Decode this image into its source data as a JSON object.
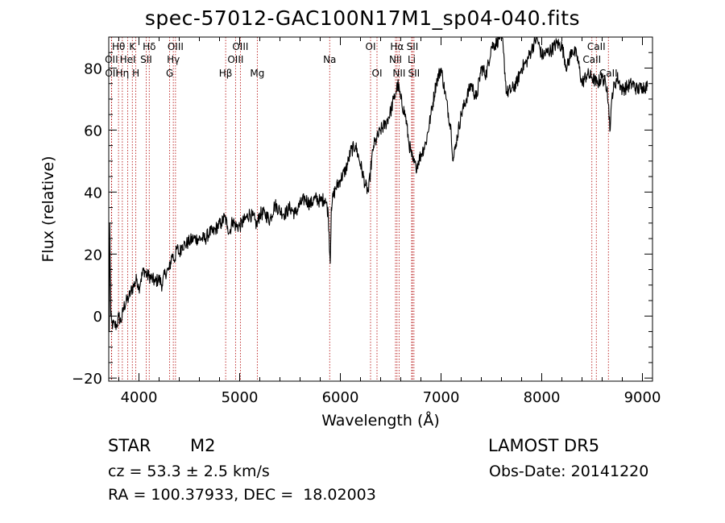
{
  "chart_data": {
    "type": "line",
    "title": "spec-57012-GAC100N17M1_sp04-040.fits",
    "xlabel": "Wavelength (Å)",
    "ylabel": "Flux (relative)",
    "xlim": [
      3700,
      9100
    ],
    "ylim": [
      -21,
      90
    ],
    "xticks": [
      4000,
      5000,
      6000,
      7000,
      8000,
      9000
    ],
    "yticks": [
      -20,
      0,
      20,
      40,
      60,
      80
    ],
    "grid": false,
    "series": [
      {
        "x": [
          3705,
          3710,
          3720,
          3730,
          3740,
          3760,
          3780,
          3800,
          3820,
          3850,
          3880,
          3900,
          3920,
          3950,
          3980,
          4000,
          4020,
          4050,
          4080,
          4100,
          4130,
          4160,
          4200,
          4230,
          4260,
          4300,
          4330,
          4350,
          4380,
          4400,
          4430,
          4460,
          4500,
          4540,
          4580,
          4620,
          4660,
          4700,
          4740,
          4780,
          4820,
          4850,
          4880,
          4900,
          4930,
          4960,
          5000,
          5050,
          5100,
          5150,
          5170,
          5200,
          5250,
          5300,
          5350,
          5400,
          5450,
          5500,
          5550,
          5600,
          5650,
          5700,
          5750,
          5800,
          5850,
          5880,
          5900,
          5910,
          5920,
          5950,
          6000,
          6050,
          6080,
          6100,
          6150,
          6200,
          6250,
          6280,
          6300,
          6330,
          6360,
          6400,
          6450,
          6500,
          6530,
          6550,
          6570,
          6600,
          6650,
          6680,
          6700,
          6720,
          6750,
          6800,
          6850,
          6900,
          6950,
          7000,
          7050,
          7100,
          7120,
          7150,
          7200,
          7250,
          7300,
          7350,
          7400,
          7450,
          7500,
          7550,
          7580,
          7600,
          7620,
          7650,
          7700,
          7750,
          7800,
          7850,
          7900,
          7950,
          8000,
          8050,
          8100,
          8150,
          8200,
          8250,
          8300,
          8350,
          8400,
          8450,
          8500,
          8550,
          8600,
          8650,
          8680,
          8700,
          8750,
          8800,
          8850,
          8900,
          8950,
          9000,
          9050
        ],
        "y": [
          -5,
          30,
          0,
          -2,
          -3,
          -3,
          -3,
          0,
          -2,
          3,
          5,
          6,
          8,
          10,
          12,
          9,
          12,
          15,
          13,
          13,
          12,
          11,
          12,
          10,
          14,
          15,
          20,
          18,
          22,
          20,
          23,
          23,
          24,
          25,
          25,
          25,
          25,
          27,
          27,
          29,
          30,
          32,
          29,
          27,
          31,
          29,
          29,
          31,
          33,
          31,
          29,
          33,
          33,
          31,
          36,
          34,
          33,
          35,
          33,
          36,
          38,
          36,
          38,
          37,
          38,
          33,
          17,
          35,
          37,
          41,
          44,
          47,
          50,
          53,
          55,
          49,
          42,
          40,
          47,
          55,
          57,
          60,
          62,
          66,
          70,
          72,
          75,
          70,
          64,
          56,
          53,
          50,
          48,
          52,
          56,
          65,
          75,
          80,
          70,
          60,
          50,
          56,
          65,
          70,
          75,
          70,
          80,
          78,
          87,
          88,
          90,
          92,
          85,
          72,
          73,
          75,
          80,
          82,
          86,
          90,
          84,
          85,
          86,
          88,
          87,
          80,
          86,
          84,
          75,
          78,
          77,
          75,
          77,
          74,
          60,
          72,
          77,
          73,
          74,
          75,
          73,
          74,
          74
        ]
      }
    ],
    "line_markers": [
      {
        "label": "Hθ",
        "wl": 3797,
        "row": 1
      },
      {
        "label": "OII",
        "wl": 3727,
        "row": 2
      },
      {
        "label": "OII",
        "wl": 3729,
        "row": 3
      },
      {
        "label": "Hη",
        "wl": 3835,
        "row": 3
      },
      {
        "label": "HeI",
        "wl": 3889,
        "row": 2
      },
      {
        "label": "K",
        "wl": 3934,
        "row": 1
      },
      {
        "label": "H",
        "wl": 3969,
        "row": 3
      },
      {
        "label": "SII",
        "wl": 4072,
        "row": 2
      },
      {
        "label": "Hδ",
        "wl": 4102,
        "row": 1
      },
      {
        "label": "G",
        "wl": 4305,
        "row": 3
      },
      {
        "label": "Hγ",
        "wl": 4341,
        "row": 2
      },
      {
        "label": "OIII",
        "wl": 4363,
        "row": 1
      },
      {
        "label": "Hβ",
        "wl": 4861,
        "row": 3
      },
      {
        "label": "OIII",
        "wl": 4959,
        "row": 2
      },
      {
        "label": "OIII",
        "wl": 5007,
        "row": 1
      },
      {
        "label": "Mg",
        "wl": 5175,
        "row": 3
      },
      {
        "label": "Na",
        "wl": 5894,
        "row": 2
      },
      {
        "label": "OI",
        "wl": 6300,
        "row": 1
      },
      {
        "label": "OI",
        "wl": 6364,
        "row": 3
      },
      {
        "label": "NII",
        "wl": 6548,
        "row": 2
      },
      {
        "label": "Hα",
        "wl": 6563,
        "row": 1
      },
      {
        "label": "NII",
        "wl": 6583,
        "row": 3
      },
      {
        "label": "Li",
        "wl": 6708,
        "row": 2
      },
      {
        "label": "SII",
        "wl": 6716,
        "row": 1
      },
      {
        "label": "SII",
        "wl": 6731,
        "row": 3
      },
      {
        "label": "CaII",
        "wl": 8498,
        "row": 2
      },
      {
        "label": "CaII",
        "wl": 8542,
        "row": 1
      },
      {
        "label": "CaII",
        "wl": 8662,
        "row": 3
      }
    ],
    "line_marker_color": "#b00000"
  },
  "info": {
    "class": "STAR",
    "subclass": "M2",
    "survey": "LAMOST DR5",
    "cz": "cz = 53.3 ± 2.5 km/s",
    "obs_date": "Obs-Date: 20141220",
    "coords": "RA = 100.37933, DEC =  18.02003"
  }
}
